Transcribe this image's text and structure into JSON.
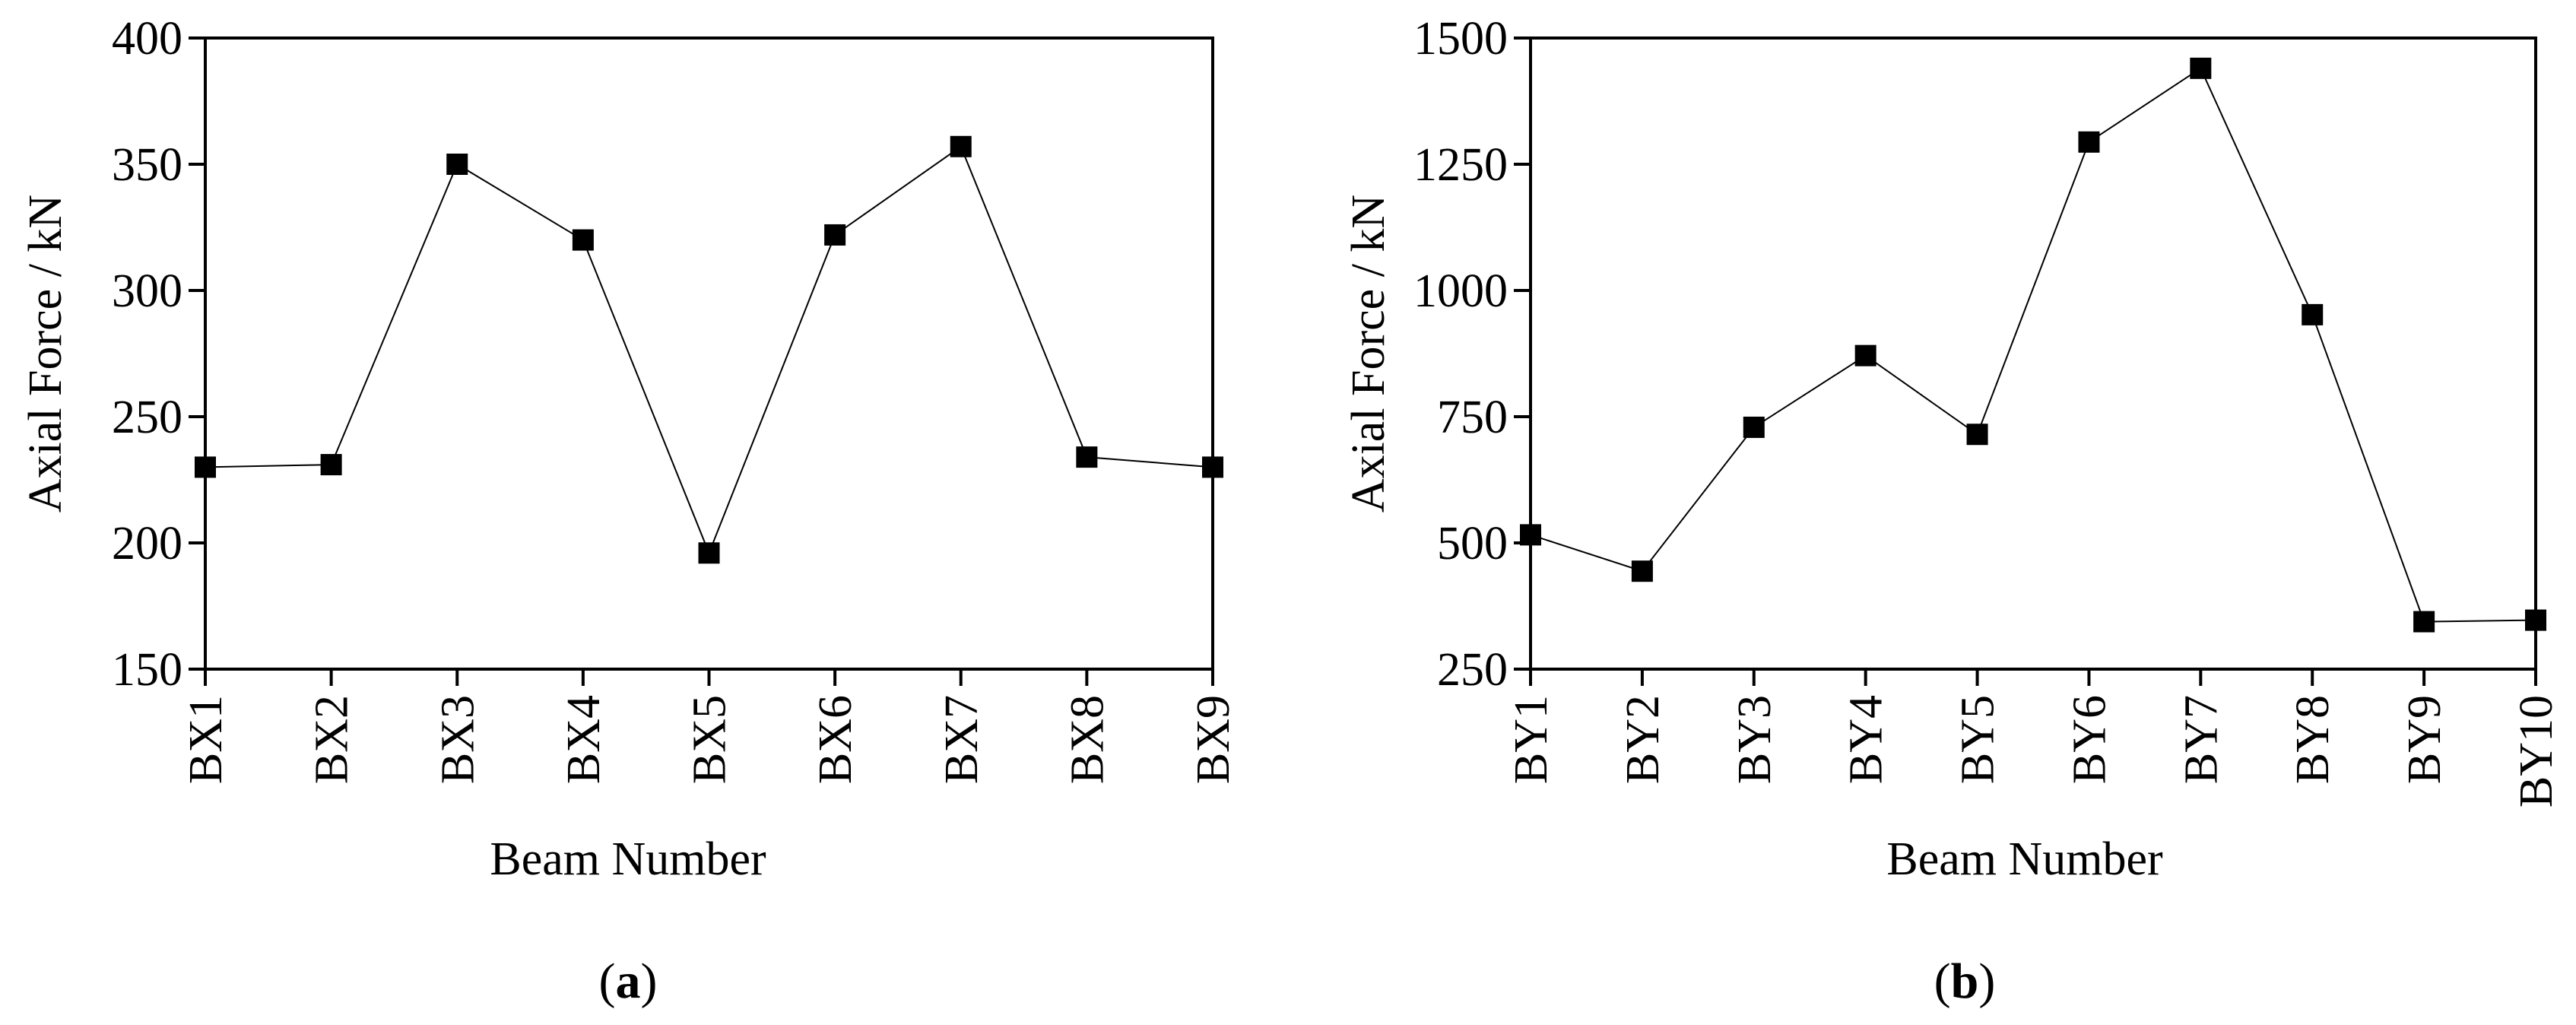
{
  "chart_data": [
    {
      "type": "line",
      "panel_label": {
        "open": "(",
        "letter": "a",
        "close": ")"
      },
      "xlabel": "Beam Number",
      "ylabel": "Axial Force / kN",
      "categories": [
        "BX1",
        "BX2",
        "BX3",
        "BX4",
        "BX5",
        "BX6",
        "BX7",
        "BX8",
        "BX9"
      ],
      "series": [
        {
          "values": [
            230,
            231,
            350,
            320,
            196,
            322,
            357,
            234,
            230
          ]
        }
      ],
      "ylim": [
        150,
        400
      ],
      "yticks": [
        150,
        200,
        250,
        300,
        350,
        400
      ],
      "marker": "square",
      "color": "#000000",
      "grid": false,
      "legend": "none"
    },
    {
      "type": "line",
      "panel_label": {
        "open": "(",
        "letter": "b",
        "close": ")"
      },
      "xlabel": "Beam Number",
      "ylabel": "Axial Force / kN",
      "categories": [
        "BY1",
        "BY2",
        "BY3",
        "BY4",
        "BY5",
        "BY6",
        "BY7",
        "BY8",
        "BY9",
        "BY10"
      ],
      "series": [
        {
          "values": [
            516,
            444,
            729,
            871,
            715,
            1294,
            1440,
            952,
            344,
            347
          ]
        }
      ],
      "ylim": [
        250,
        1500
      ],
      "yticks": [
        250,
        500,
        750,
        1000,
        1250,
        1500
      ],
      "marker": "square",
      "color": "#000000",
      "grid": false,
      "legend": "none"
    }
  ]
}
